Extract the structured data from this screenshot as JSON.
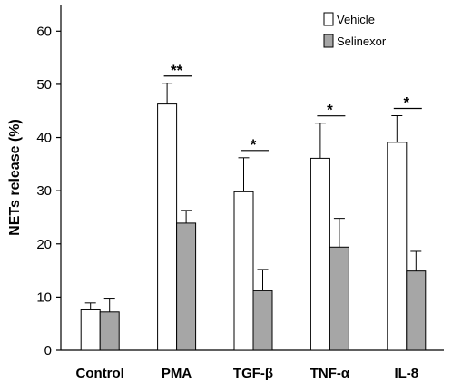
{
  "chart_data": {
    "type": "bar",
    "ylabel": "NETs release (%)",
    "xlabel": "",
    "ylim": [
      0,
      65
    ],
    "yticks": [
      0,
      10,
      20,
      30,
      40,
      50,
      60
    ],
    "categories": [
      "Control",
      "PMA",
      "TGF-β",
      "TNF-α",
      "IL-8"
    ],
    "series": [
      {
        "name": "Vehicle",
        "fill": "#ffffff",
        "values": [
          7.6,
          46.3,
          29.8,
          36.1,
          39.1
        ],
        "errors": [
          1.3,
          3.9,
          6.4,
          6.6,
          5.0
        ]
      },
      {
        "name": "Selinexor",
        "fill": "#a6a6a6",
        "values": [
          7.2,
          23.9,
          11.2,
          19.4,
          14.9
        ],
        "errors": [
          2.6,
          2.4,
          4.0,
          5.4,
          3.7
        ]
      }
    ],
    "significance": [
      {
        "category": "PMA",
        "label": "**"
      },
      {
        "category": "TGF-β",
        "label": "*"
      },
      {
        "category": "TNF-α",
        "label": "*"
      },
      {
        "category": "IL-8",
        "label": "*"
      }
    ],
    "legend_position": "top-right",
    "grid": false
  }
}
